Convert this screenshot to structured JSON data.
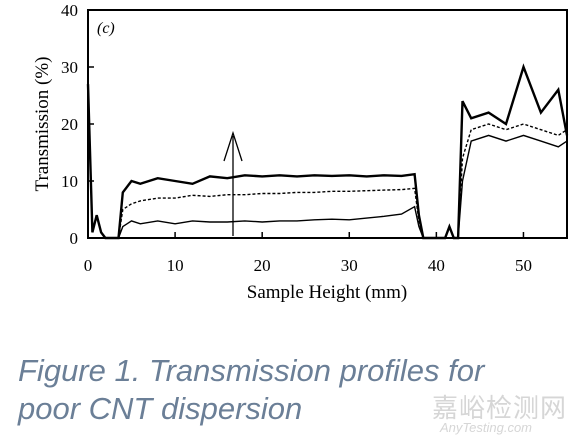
{
  "chart_data": {
    "type": "line",
    "panel_label": "(c)",
    "xlabel": "Sample Height (mm)",
    "ylabel": "Transmission (%)",
    "xlim": [
      0,
      55
    ],
    "ylim": [
      0,
      40
    ],
    "xticks": [
      0,
      10,
      20,
      30,
      40,
      50
    ],
    "yticks": [
      0,
      10,
      20,
      30,
      40
    ],
    "grid": false,
    "annotation": "arrow pointing up at x≈17 mm (transmission increasing with time)",
    "series": [
      {
        "x": [
          0,
          0.5,
          1,
          1.5,
          2,
          3,
          3.5,
          4,
          5,
          6,
          8,
          10,
          12,
          14,
          16,
          18,
          20,
          22,
          24,
          26,
          28,
          30,
          32,
          34,
          36,
          37.5,
          38,
          38.5,
          39,
          40,
          41,
          41.5,
          42,
          42.5,
          43,
          44,
          46,
          48,
          50,
          52,
          54,
          55
        ],
        "y": [
          27,
          1,
          4,
          1,
          0,
          0,
          0,
          2,
          3,
          2.5,
          3,
          2.5,
          3,
          2.8,
          2.8,
          3,
          2.8,
          3,
          3,
          3.2,
          3.3,
          3.2,
          3.5,
          3.8,
          4.2,
          5.5,
          2,
          0,
          0,
          0,
          0,
          2,
          0,
          0,
          10,
          17,
          18,
          17,
          18,
          17,
          16,
          17
        ]
      },
      {
        "x": [
          0,
          0.5,
          1,
          1.5,
          2,
          3,
          3.5,
          4,
          5,
          6,
          8,
          10,
          12,
          14,
          16,
          18,
          20,
          22,
          24,
          26,
          28,
          30,
          32,
          34,
          36,
          37.5,
          38,
          38.5,
          39,
          40,
          41,
          41.5,
          42,
          42.5,
          43,
          44,
          46,
          48,
          50,
          52,
          54,
          55
        ],
        "y": [
          27,
          1,
          4,
          1,
          0,
          0,
          0,
          5,
          6,
          6.5,
          7,
          7,
          7.5,
          7.3,
          7.6,
          7.6,
          7.8,
          7.8,
          8,
          8,
          8.2,
          8.2,
          8.3,
          8.4,
          8.5,
          8.7,
          3,
          0,
          0,
          0,
          0,
          2,
          0,
          0,
          14,
          19,
          20,
          19,
          20,
          19,
          18,
          19
        ]
      },
      {
        "x": [
          0,
          0.5,
          1,
          1.5,
          2,
          3,
          3.5,
          4,
          5,
          6,
          8,
          10,
          12,
          14,
          16,
          18,
          20,
          22,
          24,
          26,
          28,
          30,
          32,
          34,
          36,
          37.5,
          38,
          38.5,
          39,
          40,
          41,
          41.5,
          42,
          42.5,
          43,
          44,
          46,
          48,
          50,
          52,
          54,
          55
        ],
        "y": [
          27,
          1,
          4,
          1,
          0,
          0,
          0,
          8,
          10,
          9.5,
          10.5,
          10,
          9.5,
          10.8,
          10.5,
          11,
          10.8,
          11,
          10.8,
          11,
          10.9,
          11,
          10.8,
          11,
          10.9,
          11.2,
          4,
          0,
          0,
          0,
          0,
          2,
          0,
          0,
          24,
          21,
          22,
          20,
          30,
          22,
          26,
          18
        ]
      }
    ]
  },
  "caption": {
    "line1": "Figure 1. Transmission profiles for",
    "line2": "poor CNT dispersion"
  },
  "watermark": {
    "cn": "嘉峪检测网",
    "en": "AnyTesting.com"
  }
}
